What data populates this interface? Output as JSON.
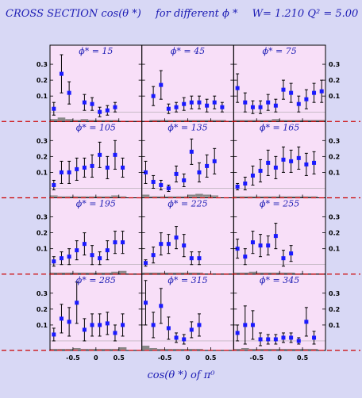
{
  "title": {
    "part1": "CROSS SECTION  cos(θ *)",
    "part2": "for different  ϕ *",
    "part3": "W= 1.210  Q² = 5.00"
  },
  "xlabel": "cos(θ *)  of  π⁰",
  "colors": {
    "background": "#d8d8f5",
    "panel": "#f8dff8",
    "points": "#1a1aff",
    "dashed": "#cc0000",
    "text": "#1c1cb4",
    "bars": "#888888"
  },
  "chart_data": {
    "type": "scatter",
    "layout": "4x3 panel grid",
    "x_ticks": [
      "-0.5",
      "0",
      "0.5"
    ],
    "x_range": [
      -1,
      1
    ],
    "ylim": [
      -0.06,
      0.42
    ],
    "y_ticks": [
      "0.1",
      "0.2",
      "0.3"
    ],
    "x_points": [
      -0.917,
      -0.75,
      -0.583,
      -0.417,
      -0.25,
      -0.083,
      0.083,
      0.25,
      0.417,
      0.583,
      0.75,
      0.917
    ],
    "panels": [
      {
        "label": "ϕ* = 15",
        "y": [
          0.02,
          0.24,
          0.12,
          null,
          0.06,
          0.05,
          0.0,
          0.01,
          0.03,
          null,
          null,
          null
        ],
        "err": [
          0.04,
          0.12,
          0.07,
          null,
          0.05,
          0.04,
          0.03,
          0.03,
          0.03,
          null,
          null,
          null
        ],
        "bars": [
          0.01,
          0.02,
          0.01,
          0.005,
          0.01,
          0.005,
          0.005,
          0.005,
          0.005,
          0,
          0,
          0
        ]
      },
      {
        "label": "ϕ* = 45",
        "y": [
          null,
          0.1,
          0.17,
          0.02,
          0.03,
          0.05,
          0.06,
          0.06,
          0.04,
          0.06,
          0.03,
          null
        ],
        "err": [
          null,
          0.06,
          0.09,
          0.03,
          0.03,
          0.04,
          0.04,
          0.04,
          0.04,
          0.04,
          0.03,
          null
        ],
        "bars": [
          0,
          0.005,
          0.005,
          0.005,
          0.005,
          0.005,
          0.005,
          0.005,
          0.005,
          0.005,
          0.005,
          0
        ]
      },
      {
        "label": "ϕ* = 75",
        "y": [
          0.15,
          0.06,
          0.03,
          0.03,
          0.06,
          0.04,
          0.14,
          0.12,
          0.05,
          0.08,
          0.12,
          0.13
        ],
        "err": [
          0.09,
          0.06,
          0.04,
          0.04,
          0.05,
          0.04,
          0.06,
          0.06,
          0.05,
          0.06,
          0.06,
          0.07
        ],
        "bars": [
          0.005,
          0.005,
          0.005,
          0.005,
          0.005,
          0.01,
          0.005,
          0.005,
          0.005,
          0.005,
          0.005,
          0.005
        ]
      },
      {
        "label": "ϕ* = 105",
        "y": [
          0.02,
          0.1,
          0.1,
          0.12,
          0.13,
          0.14,
          0.21,
          0.13,
          0.21,
          0.13,
          null,
          null
        ],
        "err": [
          0.03,
          0.07,
          0.07,
          0.07,
          0.06,
          0.07,
          0.08,
          0.07,
          0.09,
          0.06,
          null,
          null
        ],
        "bars": [
          0.01,
          0.005,
          0.005,
          0.005,
          0.005,
          0.005,
          0.005,
          0.005,
          0.01,
          0.005,
          0,
          0
        ]
      },
      {
        "label": "ϕ* = 135",
        "y": [
          0.1,
          0.04,
          0.02,
          0.0,
          0.09,
          0.05,
          0.23,
          0.1,
          0.14,
          0.17,
          null,
          null
        ],
        "err": [
          0.07,
          0.04,
          0.03,
          0.02,
          0.05,
          0.04,
          0.08,
          0.06,
          0.07,
          0.08,
          null,
          null
        ],
        "bars": [
          0.015,
          0.005,
          0.005,
          0.005,
          0.005,
          0.005,
          0.015,
          0.02,
          0.015,
          0.01,
          0,
          0
        ]
      },
      {
        "label": "ϕ* = 165",
        "y": [
          0.01,
          0.03,
          0.08,
          0.11,
          0.16,
          0.13,
          0.18,
          0.17,
          0.19,
          0.15,
          0.16,
          null
        ],
        "err": [
          0.02,
          0.04,
          0.06,
          0.07,
          0.08,
          0.07,
          0.08,
          0.07,
          0.07,
          0.07,
          0.07,
          null
        ],
        "bars": [
          0.005,
          0.005,
          0.005,
          0.005,
          0.005,
          0.005,
          0.005,
          0.005,
          0.005,
          0.005,
          0.005,
          0
        ]
      },
      {
        "label": "ϕ* = 195",
        "y": [
          0.02,
          0.04,
          0.05,
          0.09,
          0.13,
          0.06,
          0.04,
          0.09,
          0.14,
          0.14,
          null,
          null
        ],
        "err": [
          0.03,
          0.04,
          0.05,
          0.06,
          0.07,
          0.06,
          0.04,
          0.06,
          0.07,
          0.07,
          null,
          null
        ],
        "bars": [
          0.005,
          0.005,
          0.005,
          0.005,
          0.005,
          0.005,
          0.005,
          0.005,
          0.01,
          0.015,
          0,
          0
        ]
      },
      {
        "label": "ϕ* = 225",
        "y": [
          0.01,
          0.06,
          0.13,
          0.13,
          0.17,
          0.12,
          0.04,
          0.04,
          null,
          null,
          null,
          null
        ],
        "err": [
          0.02,
          0.05,
          0.07,
          0.06,
          0.07,
          0.07,
          0.04,
          0.04,
          null,
          null,
          null,
          null
        ],
        "bars": [
          0.005,
          0.005,
          0.005,
          0.005,
          0.005,
          0.005,
          0.005,
          0.005,
          0,
          0,
          0,
          0
        ]
      },
      {
        "label": "ϕ* = 255",
        "y": [
          0.1,
          0.05,
          0.14,
          0.12,
          0.12,
          0.18,
          0.04,
          0.07,
          null,
          null,
          null,
          null
        ],
        "err": [
          0.06,
          0.05,
          0.07,
          0.07,
          0.06,
          0.08,
          0.05,
          0.05,
          null,
          null,
          null,
          null
        ],
        "bars": [
          0.005,
          0.005,
          0.01,
          0.005,
          0.005,
          0.005,
          0.005,
          0.005,
          0,
          0,
          0,
          0
        ]
      },
      {
        "label": "ϕ* = 285",
        "y": [
          0.04,
          0.14,
          0.12,
          0.24,
          0.07,
          0.1,
          0.1,
          0.11,
          0.05,
          0.1,
          null,
          null
        ],
        "err": [
          0.04,
          0.09,
          0.09,
          0.13,
          0.07,
          0.07,
          0.07,
          0.07,
          0.05,
          0.07,
          null,
          null
        ],
        "bars": [
          0.005,
          0.005,
          0.005,
          0.01,
          0.005,
          0.005,
          0.005,
          0.005,
          0.005,
          0.015,
          0,
          0
        ]
      },
      {
        "label": "ϕ* = 315",
        "y": [
          0.24,
          0.1,
          0.22,
          0.08,
          0.02,
          0.01,
          0.07,
          0.1,
          null,
          null,
          null,
          null
        ],
        "err": [
          0.14,
          0.08,
          0.11,
          0.07,
          0.03,
          0.03,
          0.05,
          0.07,
          null,
          null,
          null,
          null
        ],
        "bars": [
          0.025,
          0.01,
          0.005,
          0.005,
          0.005,
          0.005,
          0.005,
          0.005,
          0,
          0,
          0,
          0
        ]
      },
      {
        "label": "ϕ* = 345",
        "y": [
          0.05,
          0.1,
          0.1,
          0.01,
          0.01,
          0.01,
          0.02,
          0.02,
          0.0,
          0.12,
          0.02,
          null
        ],
        "err": [
          0.05,
          0.12,
          0.09,
          0.04,
          0.03,
          0.03,
          0.03,
          0.03,
          0.02,
          0.09,
          0.04,
          null
        ],
        "bars": [
          0.005,
          0.01,
          0.005,
          0.005,
          0.005,
          0.005,
          0.005,
          0.005,
          0.005,
          0.005,
          0.005,
          0
        ]
      }
    ]
  }
}
